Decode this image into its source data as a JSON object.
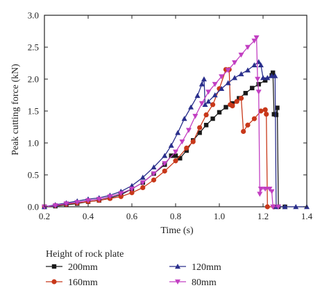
{
  "chart_data": {
    "type": "line",
    "xlabel": "Time (s)",
    "ylabel": "Peak cutting force (kN)",
    "xlim": [
      0.2,
      1.4
    ],
    "ylim": [
      0.0,
      3.0
    ],
    "xticks": [
      "0.2",
      "0.4",
      "0.6",
      "0.8",
      "1.0",
      "1.2",
      "1.4"
    ],
    "yticks": [
      "0.0",
      "0.5",
      "1.0",
      "1.5",
      "2.0",
      "2.5",
      "3.0"
    ],
    "legend_title": "Height of rock plate",
    "legend_placement": "bottom",
    "series": [
      {
        "name": "200mm",
        "color": "#1a1a1a",
        "marker": "square",
        "points": [
          [
            0.2,
            0.0
          ],
          [
            0.25,
            0.01
          ],
          [
            0.3,
            0.03
          ],
          [
            0.35,
            0.05
          ],
          [
            0.4,
            0.08
          ],
          [
            0.45,
            0.1
          ],
          [
            0.5,
            0.14
          ],
          [
            0.55,
            0.19
          ],
          [
            0.6,
            0.28
          ],
          [
            0.65,
            0.38
          ],
          [
            0.7,
            0.52
          ],
          [
            0.75,
            0.66
          ],
          [
            0.78,
            0.8
          ],
          [
            0.8,
            0.8
          ],
          [
            0.82,
            0.76
          ],
          [
            0.85,
            0.88
          ],
          [
            0.88,
            1.04
          ],
          [
            0.91,
            1.16
          ],
          [
            0.94,
            1.28
          ],
          [
            0.97,
            1.38
          ],
          [
            1.0,
            1.48
          ],
          [
            1.03,
            1.56
          ],
          [
            1.06,
            1.62
          ],
          [
            1.09,
            1.7
          ],
          [
            1.12,
            1.78
          ],
          [
            1.15,
            1.86
          ],
          [
            1.18,
            1.92
          ],
          [
            1.21,
            1.98
          ],
          [
            1.24,
            2.06
          ],
          [
            1.245,
            2.1
          ],
          [
            1.25,
            1.45
          ],
          [
            1.26,
            1.44
          ],
          [
            1.265,
            1.55
          ],
          [
            1.27,
            0.0
          ],
          [
            1.3,
            0.0
          ]
        ]
      },
      {
        "name": "160mm",
        "color": "#c8381a",
        "marker": "circle",
        "points": [
          [
            0.2,
            0.0
          ],
          [
            0.25,
            0.02
          ],
          [
            0.3,
            0.04
          ],
          [
            0.35,
            0.06
          ],
          [
            0.4,
            0.08
          ],
          [
            0.45,
            0.1
          ],
          [
            0.5,
            0.13
          ],
          [
            0.55,
            0.16
          ],
          [
            0.6,
            0.22
          ],
          [
            0.65,
            0.3
          ],
          [
            0.7,
            0.42
          ],
          [
            0.75,
            0.56
          ],
          [
            0.8,
            0.72
          ],
          [
            0.85,
            0.92
          ],
          [
            0.88,
            1.02
          ],
          [
            0.91,
            1.24
          ],
          [
            0.94,
            1.44
          ],
          [
            0.97,
            1.6
          ],
          [
            1.0,
            1.85
          ],
          [
            1.03,
            2.15
          ],
          [
            1.045,
            2.15
          ],
          [
            1.05,
            1.6
          ],
          [
            1.06,
            1.58
          ],
          [
            1.08,
            1.65
          ],
          [
            1.1,
            1.7
          ],
          [
            1.11,
            1.18
          ],
          [
            1.13,
            1.28
          ],
          [
            1.16,
            1.38
          ],
          [
            1.19,
            1.5
          ],
          [
            1.21,
            1.52
          ],
          [
            1.215,
            1.45
          ],
          [
            1.22,
            0.0
          ],
          [
            1.25,
            0.0
          ]
        ]
      },
      {
        "name": "120mm",
        "color": "#2a2f8c",
        "marker": "triangle-up",
        "points": [
          [
            0.2,
            0.0
          ],
          [
            0.25,
            0.03
          ],
          [
            0.3,
            0.06
          ],
          [
            0.35,
            0.09
          ],
          [
            0.4,
            0.12
          ],
          [
            0.45,
            0.14
          ],
          [
            0.5,
            0.18
          ],
          [
            0.55,
            0.24
          ],
          [
            0.6,
            0.33
          ],
          [
            0.65,
            0.46
          ],
          [
            0.7,
            0.62
          ],
          [
            0.75,
            0.8
          ],
          [
            0.78,
            0.96
          ],
          [
            0.81,
            1.16
          ],
          [
            0.84,
            1.38
          ],
          [
            0.87,
            1.56
          ],
          [
            0.9,
            1.74
          ],
          [
            0.92,
            1.92
          ],
          [
            0.93,
            2.0
          ],
          [
            0.935,
            1.6
          ],
          [
            0.95,
            1.65
          ],
          [
            0.98,
            1.75
          ],
          [
            1.01,
            1.85
          ],
          [
            1.04,
            1.94
          ],
          [
            1.07,
            2.02
          ],
          [
            1.1,
            2.08
          ],
          [
            1.13,
            2.14
          ],
          [
            1.16,
            2.22
          ],
          [
            1.18,
            2.27
          ],
          [
            1.19,
            2.22
          ],
          [
            1.2,
            2.02
          ],
          [
            1.22,
            2.02
          ],
          [
            1.24,
            2.05
          ],
          [
            1.255,
            2.05
          ],
          [
            1.26,
            0.0
          ],
          [
            1.3,
            0.0
          ],
          [
            1.35,
            0.0
          ],
          [
            1.4,
            0.0
          ]
        ]
      },
      {
        "name": "80mm",
        "color": "#c23fc2",
        "marker": "triangle-down",
        "points": [
          [
            0.2,
            0.0
          ],
          [
            0.25,
            0.02
          ],
          [
            0.3,
            0.05
          ],
          [
            0.35,
            0.07
          ],
          [
            0.4,
            0.1
          ],
          [
            0.45,
            0.12
          ],
          [
            0.5,
            0.16
          ],
          [
            0.55,
            0.21
          ],
          [
            0.6,
            0.28
          ],
          [
            0.65,
            0.38
          ],
          [
            0.7,
            0.52
          ],
          [
            0.75,
            0.68
          ],
          [
            0.8,
            0.86
          ],
          [
            0.83,
            1.02
          ],
          [
            0.86,
            1.2
          ],
          [
            0.89,
            1.42
          ],
          [
            0.92,
            1.62
          ],
          [
            0.95,
            1.8
          ],
          [
            0.98,
            1.92
          ],
          [
            1.01,
            2.04
          ],
          [
            1.04,
            2.14
          ],
          [
            1.07,
            2.26
          ],
          [
            1.1,
            2.38
          ],
          [
            1.13,
            2.5
          ],
          [
            1.16,
            2.6
          ],
          [
            1.17,
            2.65
          ],
          [
            1.175,
            2.0
          ],
          [
            1.18,
            1.8
          ],
          [
            1.185,
            0.2
          ],
          [
            1.19,
            0.28
          ],
          [
            1.21,
            0.28
          ],
          [
            1.23,
            0.28
          ],
          [
            1.24,
            0.24
          ],
          [
            1.245,
            0.0
          ],
          [
            1.27,
            0.0
          ]
        ]
      }
    ]
  }
}
